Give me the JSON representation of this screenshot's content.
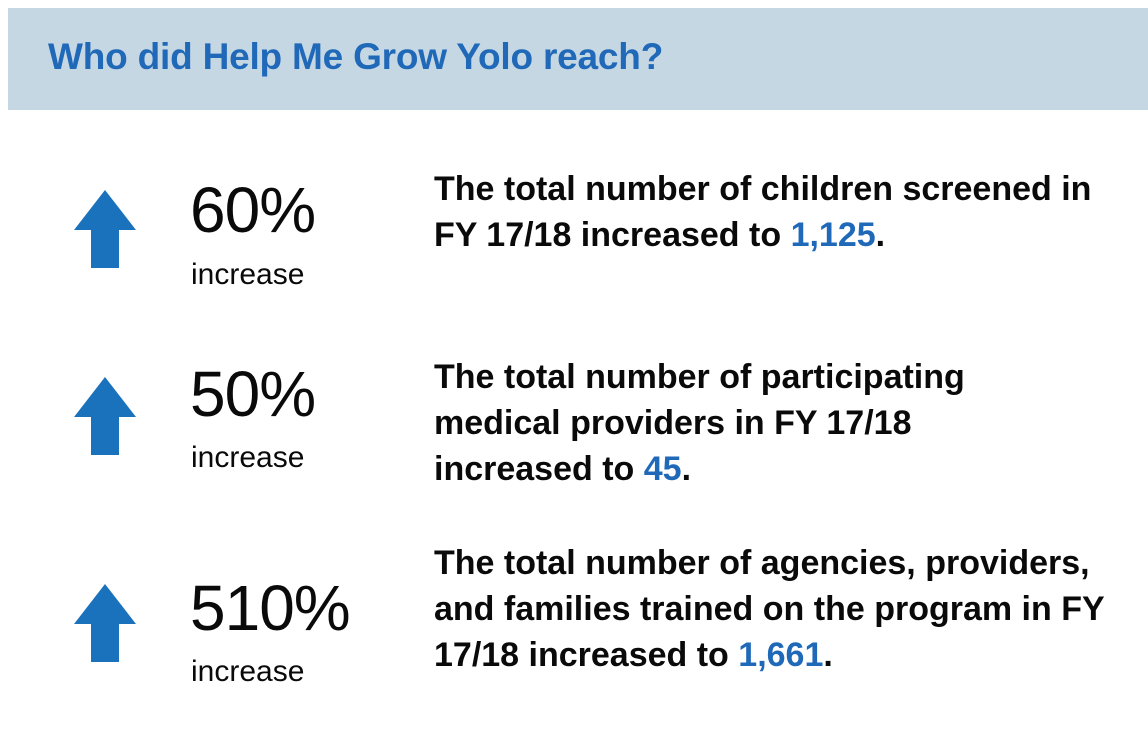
{
  "header": {
    "title": "Who did Help Me Grow Yolo reach?"
  },
  "colors": {
    "header_background": "#c6d7e4",
    "accent_blue": "#1f69b8",
    "arrow_blue": "#1a72bd",
    "text": "#0a0a0a"
  },
  "stats": [
    {
      "icon": "arrow-up-icon",
      "percent": "60%",
      "suffix": "increase",
      "text_before": "The total number of children screened in FY 17/18 increased to ",
      "highlight": "1,125",
      "text_after": "."
    },
    {
      "icon": "arrow-up-icon",
      "percent": "50%",
      "suffix": "increase",
      "text_before": "The total number of participating medical providers in FY 17/18 increased to ",
      "highlight": "45",
      "text_after": "."
    },
    {
      "icon": "arrow-up-icon",
      "percent": "510%",
      "suffix": "increase",
      "text_before": "The total number of agencies, providers, and families trained on the program in FY 17/18 increased to ",
      "highlight": "1,661",
      "text_after": "."
    }
  ]
}
